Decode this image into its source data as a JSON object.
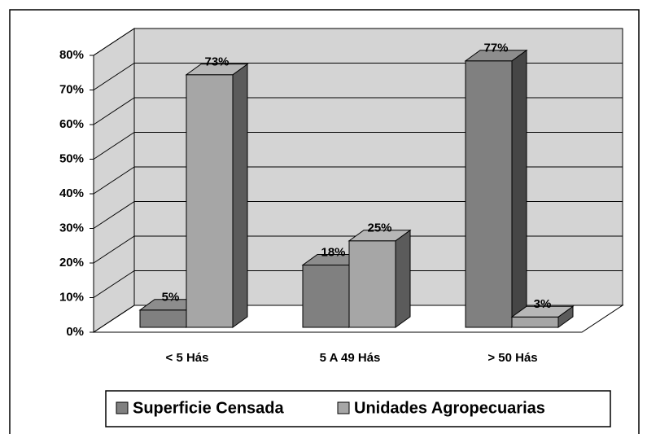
{
  "chart_data": {
    "type": "bar3d",
    "categories": [
      "< 5 Hás",
      "5 A 49 Hás",
      "> 50 Hás"
    ],
    "series": [
      {
        "name": "Superficie Censada",
        "color": "#808080",
        "values": [
          5,
          18,
          77
        ],
        "value_labels": [
          "5%",
          "18%",
          "77%"
        ]
      },
      {
        "name": "Unidades Agropecuarias",
        "color": "#a6a6a6",
        "values": [
          73,
          25,
          3
        ],
        "value_labels": [
          "73%",
          "25%",
          "3%"
        ]
      }
    ],
    "ylim": [
      0,
      80
    ],
    "yticks": [
      {
        "value": 0,
        "label": "0%"
      },
      {
        "value": 10,
        "label": "10%"
      },
      {
        "value": 20,
        "label": "20%"
      },
      {
        "value": 30,
        "label": "30%"
      },
      {
        "value": 40,
        "label": "40%"
      },
      {
        "value": 50,
        "label": "50%"
      },
      {
        "value": 60,
        "label": "60%"
      },
      {
        "value": 70,
        "label": "70%"
      },
      {
        "value": 80,
        "label": "80%"
      }
    ],
    "grid": true
  }
}
